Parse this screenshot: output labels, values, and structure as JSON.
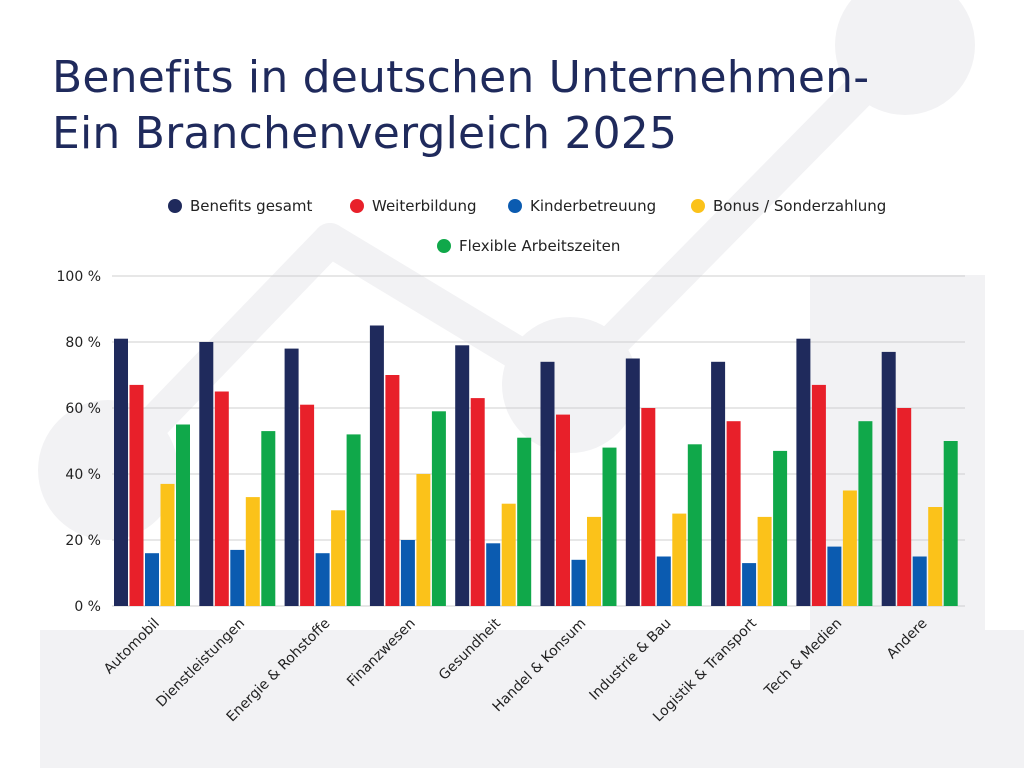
{
  "title": {
    "line1": "Benefits in deutschen Unternehmen-",
    "line2": "Ein Branchenvergleich 2025"
  },
  "colors": {
    "title": "#1f2a5c",
    "grid": "#cfcfcf",
    "deco": "#f1f1f3"
  },
  "chart_data": {
    "type": "bar",
    "categories": [
      "Automobil",
      "Dienstleistungen",
      "Energie & Rohstoffe",
      "Finanzwesen",
      "Gesundheit",
      "Handel & Konsum",
      "Industrie & Bau",
      "Logistik & Transport",
      "Tech & Medien",
      "Andere"
    ],
    "series": [
      {
        "name": "Benefits gesamt",
        "color": "#1f2a5c",
        "values": [
          81,
          80,
          78,
          85,
          79,
          74,
          75,
          74,
          81,
          77
        ]
      },
      {
        "name": "Weiterbildung",
        "color": "#e8202a",
        "values": [
          67,
          65,
          61,
          70,
          63,
          58,
          60,
          56,
          67,
          60
        ]
      },
      {
        "name": "Kinderbetreuung",
        "color": "#0b5bb0",
        "values": [
          16,
          17,
          16,
          20,
          19,
          14,
          15,
          13,
          18,
          15
        ]
      },
      {
        "name": "Bonus / Sonderzahlung",
        "color": "#fbc21a",
        "values": [
          37,
          33,
          29,
          40,
          31,
          27,
          28,
          27,
          35,
          30
        ]
      },
      {
        "name": "Flexible Arbeitszeiten",
        "color": "#10a84a",
        "values": [
          55,
          53,
          52,
          59,
          51,
          48,
          49,
          47,
          56,
          50
        ]
      }
    ],
    "yticks": [
      "0 %",
      "20 %",
      "40 %",
      "60 %",
      "80 %",
      "100 %"
    ],
    "ylim": [
      0,
      100
    ],
    "grid": true,
    "legend_position": "top"
  }
}
